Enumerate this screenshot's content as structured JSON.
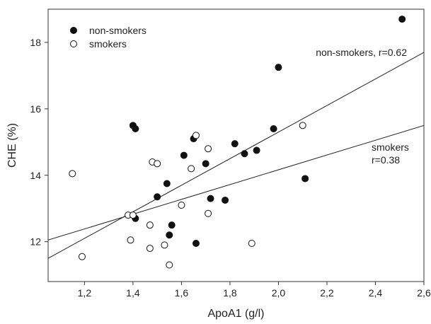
{
  "chart_data": {
    "type": "scatter",
    "xlabel": "ApoA1 (g/l)",
    "ylabel": "CHE (%)",
    "xlim": [
      1.05,
      2.6
    ],
    "ylim": [
      10.8,
      19.0
    ],
    "x_ticks": [
      "1,2",
      "1,4",
      "1,6",
      "1,8",
      "2,0",
      "2,2",
      "2,4",
      "2,6"
    ],
    "y_ticks": [
      "12",
      "14",
      "16",
      "18"
    ],
    "legend_position": "top-left",
    "series": [
      {
        "name": "non-smokers",
        "marker": "filled-circle",
        "color": "#111111",
        "points": [
          [
            1.4,
            15.5
          ],
          [
            1.41,
            15.4
          ],
          [
            1.41,
            12.7
          ],
          [
            1.5,
            13.35
          ],
          [
            1.54,
            13.75
          ],
          [
            1.55,
            12.2
          ],
          [
            1.56,
            12.5
          ],
          [
            1.61,
            14.6
          ],
          [
            1.65,
            15.1
          ],
          [
            1.66,
            11.95
          ],
          [
            1.7,
            14.35
          ],
          [
            1.72,
            13.3
          ],
          [
            1.78,
            13.25
          ],
          [
            1.82,
            14.95
          ],
          [
            1.86,
            14.65
          ],
          [
            1.91,
            14.75
          ],
          [
            1.98,
            15.4
          ],
          [
            2.0,
            17.25
          ],
          [
            2.11,
            13.9
          ],
          [
            2.51,
            18.7
          ]
        ],
        "fit_label": "non-smokers, r=0.62",
        "fit_line": [
          [
            1.05,
            11.5
          ],
          [
            2.6,
            17.7
          ]
        ]
      },
      {
        "name": "smokers",
        "marker": "open-circle",
        "color": "#111111",
        "points": [
          [
            1.15,
            14.05
          ],
          [
            1.19,
            11.55
          ],
          [
            1.38,
            12.8
          ],
          [
            1.39,
            12.05
          ],
          [
            1.4,
            12.8
          ],
          [
            1.47,
            12.5
          ],
          [
            1.47,
            11.8
          ],
          [
            1.48,
            14.4
          ],
          [
            1.5,
            14.35
          ],
          [
            1.53,
            11.9
          ],
          [
            1.55,
            11.3
          ],
          [
            1.6,
            13.1
          ],
          [
            1.64,
            14.2
          ],
          [
            1.66,
            15.2
          ],
          [
            1.71,
            14.8
          ],
          [
            1.71,
            12.85
          ],
          [
            1.89,
            11.95
          ],
          [
            2.1,
            15.5
          ]
        ],
        "fit_label_lines": [
          "smokers",
          "r=0.38"
        ],
        "fit_line": [
          [
            1.05,
            12.05
          ],
          [
            2.6,
            15.5
          ]
        ]
      }
    ]
  }
}
